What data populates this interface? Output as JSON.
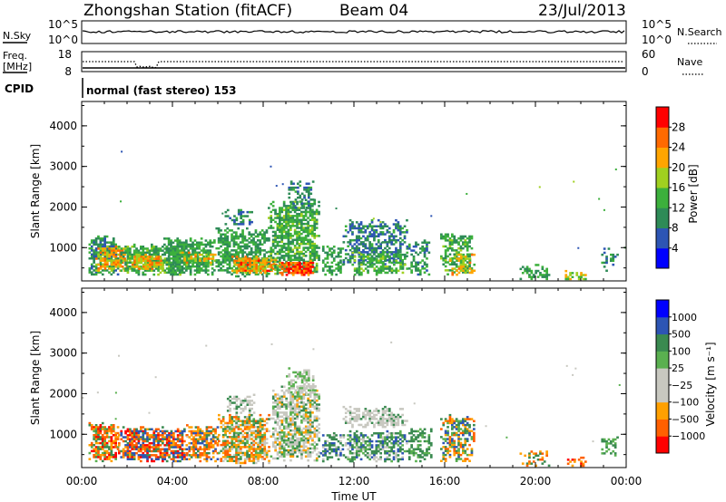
{
  "header": {
    "station": "Zhongshan Station (fitACF)",
    "beam": "Beam 04",
    "date": "23/Jul/2013"
  },
  "panels": {
    "nsky": {
      "left_label": "N.Sky",
      "right_label": "N.Search",
      "left_ticks": [
        "10^5",
        "10^0"
      ],
      "right_ticks": [
        "10^5",
        "10^0"
      ]
    },
    "freq": {
      "left_label_1": "Freq.",
      "left_label_2": "[MHz]",
      "right_label": "Nave",
      "left_ticks": [
        "18",
        "8"
      ],
      "right_ticks": [
        "60",
        "0"
      ]
    },
    "cpid": {
      "label": "CPID",
      "text": "normal (fast stereo) 153"
    }
  },
  "colors": {
    "power": [
      "#0000ff",
      "#2d55b4",
      "#2e8b57",
      "#3cb03c",
      "#a0d020",
      "#ffa500",
      "#ff6a00",
      "#ff0000"
    ],
    "velocity": [
      "#ff0000",
      "#ff6000",
      "#ffa000",
      "#c8c8c0",
      "#c8c8c0",
      "#5ab050",
      "#3a8a50",
      "#2d55b4",
      "#0000ff"
    ]
  },
  "chart_data": [
    {
      "type": "heatmap",
      "name": "power",
      "ylabel": "Slant Range [km]",
      "y_ticks": [
        "1000",
        "2000",
        "3000",
        "4000"
      ],
      "colorbar_label": "Power [dB]",
      "colorbar_ticks": [
        "4",
        "8",
        "12",
        "16",
        "20",
        "24",
        "28"
      ],
      "x_range_hours": [
        0,
        24
      ],
      "y_range_km": [
        180,
        4600
      ],
      "cbar_range": [
        0,
        32
      ],
      "grid": false,
      "regions": [
        {
          "t0": 0.3,
          "t1": 1.6,
          "r0": 350,
          "r1": 1300,
          "v": 10,
          "sp": 1,
          "d": 0.75
        },
        {
          "t0": 0.6,
          "t1": 2.0,
          "r0": 450,
          "r1": 1050,
          "v": 22,
          "sp": 2,
          "d": 0.8
        },
        {
          "t0": 1.6,
          "t1": 4.6,
          "r0": 350,
          "r1": 1100,
          "v": 13,
          "sp": 1,
          "d": 0.7
        },
        {
          "t0": 2.1,
          "t1": 3.6,
          "r0": 500,
          "r1": 850,
          "v": 22,
          "sp": 2,
          "d": 0.75
        },
        {
          "t0": 3.6,
          "t1": 5.8,
          "r0": 350,
          "r1": 1250,
          "v": 12,
          "sp": 1,
          "d": 0.7
        },
        {
          "t0": 4.3,
          "t1": 5.9,
          "r0": 600,
          "r1": 900,
          "v": 19,
          "sp": 2,
          "d": 0.6
        },
        {
          "t0": 5.8,
          "t1": 8.2,
          "r0": 300,
          "r1": 1500,
          "v": 12,
          "sp": 1,
          "d": 0.7
        },
        {
          "t0": 6.3,
          "t1": 7.5,
          "r0": 1550,
          "r1": 2000,
          "v": 9,
          "sp": 1,
          "d": 0.5
        },
        {
          "t0": 6.6,
          "t1": 8.6,
          "r0": 400,
          "r1": 800,
          "v": 23,
          "sp": 2,
          "d": 0.8
        },
        {
          "t0": 8.2,
          "t1": 10.5,
          "r0": 350,
          "r1": 2200,
          "v": 13,
          "sp": 1,
          "d": 0.7
        },
        {
          "t0": 8.7,
          "t1": 10.2,
          "r0": 350,
          "r1": 700,
          "v": 27,
          "sp": 2,
          "d": 0.8
        },
        {
          "t0": 9.0,
          "t1": 10.2,
          "r0": 2000,
          "r1": 2700,
          "v": 10,
          "sp": 1,
          "d": 0.5
        },
        {
          "t0": 10.5,
          "t1": 11.5,
          "r0": 350,
          "r1": 1050,
          "v": 12,
          "sp": 1,
          "d": 0.55
        },
        {
          "t0": 11.5,
          "t1": 14.3,
          "r0": 600,
          "r1": 1700,
          "v": 9,
          "sp": 1,
          "d": 0.55
        },
        {
          "t0": 11.8,
          "t1": 14.3,
          "r0": 350,
          "r1": 900,
          "v": 14,
          "sp": 1,
          "d": 0.6
        },
        {
          "t0": 14.3,
          "t1": 15.3,
          "r0": 350,
          "r1": 1200,
          "v": 11,
          "sp": 1,
          "d": 0.5
        },
        {
          "t0": 15.8,
          "t1": 17.2,
          "r0": 350,
          "r1": 1400,
          "v": 13,
          "sp": 1,
          "d": 0.6
        },
        {
          "t0": 16.2,
          "t1": 17.3,
          "r0": 350,
          "r1": 900,
          "v": 20,
          "sp": 2,
          "d": 0.5
        },
        {
          "t0": 19.3,
          "t1": 20.6,
          "r0": 250,
          "r1": 600,
          "v": 12,
          "sp": 1,
          "d": 0.35
        },
        {
          "t0": 21.2,
          "t1": 22.2,
          "r0": 230,
          "r1": 450,
          "v": 18,
          "sp": 2,
          "d": 0.45
        },
        {
          "t0": 22.8,
          "t1": 23.6,
          "r0": 400,
          "r1": 1000,
          "v": 10,
          "sp": 1,
          "d": 0.35
        }
      ]
    },
    {
      "type": "heatmap",
      "name": "velocity",
      "ylabel": "Slant Range [km]",
      "y_ticks": [
        "1000",
        "2000",
        "3000",
        "4000"
      ],
      "colorbar_label": "Velocity [m s⁻¹]",
      "colorbar_ticks": [
        "-1000",
        "-500",
        "-100",
        "-25",
        "25",
        "100",
        "500",
        "1000"
      ],
      "x_ticks": [
        "00:00",
        "04:00",
        "08:00",
        "12:00",
        "16:00",
        "20:00",
        "00:00"
      ],
      "xlabel": "Time UT",
      "x_range_hours": [
        0,
        24
      ],
      "y_range_km": [
        180,
        4600
      ],
      "grid": false,
      "regions": [
        {
          "t0": 0.3,
          "t1": 1.6,
          "r0": 350,
          "r1": 1300,
          "c": [
            0,
            1,
            1,
            2,
            2,
            5,
            6
          ],
          "d": 0.75
        },
        {
          "t0": 1.6,
          "t1": 4.6,
          "r0": 350,
          "r1": 1200,
          "c": [
            0,
            1,
            1,
            2,
            7,
            7,
            6
          ],
          "d": 0.75
        },
        {
          "t0": 4.6,
          "t1": 6.0,
          "r0": 350,
          "r1": 1250,
          "c": [
            1,
            1,
            2,
            2,
            6,
            7
          ],
          "d": 0.7
        },
        {
          "t0": 6.0,
          "t1": 8.3,
          "r0": 300,
          "r1": 1500,
          "c": [
            1,
            2,
            2,
            3,
            5,
            6
          ],
          "d": 0.75
        },
        {
          "t0": 6.3,
          "t1": 7.6,
          "r0": 1550,
          "r1": 2000,
          "c": [
            3,
            3,
            6
          ],
          "d": 0.5
        },
        {
          "t0": 8.3,
          "t1": 10.5,
          "r0": 350,
          "r1": 2200,
          "c": [
            3,
            3,
            3,
            5,
            6,
            2
          ],
          "d": 0.7
        },
        {
          "t0": 9.0,
          "t1": 10.3,
          "r0": 2000,
          "r1": 2700,
          "c": [
            3,
            3,
            5
          ],
          "d": 0.5
        },
        {
          "t0": 10.5,
          "t1": 11.5,
          "r0": 350,
          "r1": 1050,
          "c": [
            6,
            6,
            7,
            3
          ],
          "d": 0.55
        },
        {
          "t0": 11.5,
          "t1": 14.3,
          "r0": 1200,
          "r1": 1700,
          "c": [
            3,
            3,
            3,
            6
          ],
          "d": 0.6
        },
        {
          "t0": 11.5,
          "t1": 14.3,
          "r0": 350,
          "r1": 1100,
          "c": [
            6,
            6,
            5,
            7,
            3
          ],
          "d": 0.6
        },
        {
          "t0": 14.3,
          "t1": 15.4,
          "r0": 350,
          "r1": 1200,
          "c": [
            6,
            6,
            5
          ],
          "d": 0.5
        },
        {
          "t0": 15.8,
          "t1": 17.3,
          "r0": 350,
          "r1": 1500,
          "c": [
            6,
            5,
            1,
            2,
            7
          ],
          "d": 0.6
        },
        {
          "t0": 19.3,
          "t1": 20.6,
          "r0": 250,
          "r1": 600,
          "c": [
            2,
            1,
            6
          ],
          "d": 0.35
        },
        {
          "t0": 21.2,
          "t1": 22.2,
          "r0": 230,
          "r1": 450,
          "c": [
            0,
            1,
            2
          ],
          "d": 0.45
        },
        {
          "t0": 22.8,
          "t1": 23.6,
          "r0": 400,
          "r1": 1000,
          "c": [
            6,
            5
          ],
          "d": 0.35
        }
      ]
    }
  ]
}
